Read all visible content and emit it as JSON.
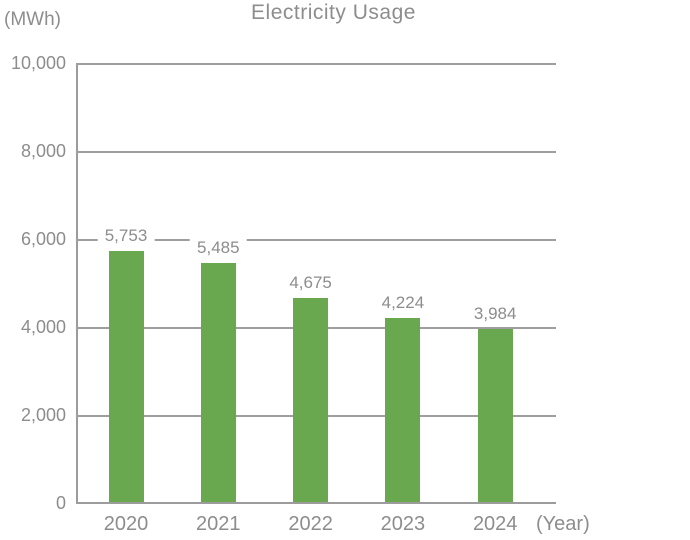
{
  "chart_data": {
    "type": "bar",
    "title": "Electricity Usage",
    "ylabel": "(MWh)",
    "xlabel": "(Year)",
    "categories": [
      "2020",
      "2021",
      "2022",
      "2023",
      "2024"
    ],
    "values": [
      5753,
      5485,
      4675,
      4224,
      3984
    ],
    "value_labels": [
      "5,753",
      "5,485",
      "4,675",
      "4,224",
      "3,984"
    ],
    "y_ticks": [
      0,
      2000,
      4000,
      6000,
      8000,
      10000
    ],
    "y_tick_labels": [
      "0",
      "2,000",
      "4,000",
      "6,000",
      "8,000",
      "10,000"
    ],
    "ylim": [
      0,
      10000
    ],
    "grid": true,
    "legend": "none",
    "colors": {
      "bar": "#6aa84f",
      "axis": "#9c9c9c",
      "grid": "#9e9e9e",
      "text": "#8d8d8d"
    }
  }
}
